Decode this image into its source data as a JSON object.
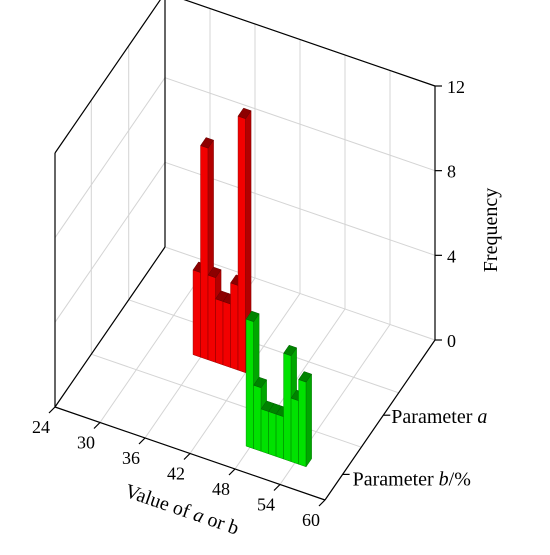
{
  "chart_data": {
    "type": "bar",
    "title": "",
    "xlabel": "Value of a or b",
    "xlabel_parts": [
      "Value of ",
      "a",
      " or ",
      "b"
    ],
    "zlabel": "Frequency",
    "x_ticks": [
      "24",
      "30",
      "36",
      "42",
      "48",
      "54",
      "60"
    ],
    "xlim": [
      24,
      60
    ],
    "z_ticks": [
      "0",
      "4",
      "8",
      "12"
    ],
    "zlim": [
      0,
      12
    ],
    "grid": true,
    "series": [
      {
        "name": "Parameter a",
        "label_parts": [
          "Parameter ",
          "a",
          ""
        ],
        "color": "#ff0000",
        "x": [
          35.5,
          36.5,
          37.5,
          38.5,
          39.5,
          40.5,
          41.5
        ],
        "values": [
          4,
          10,
          4,
          3,
          3,
          4,
          12
        ]
      },
      {
        "name": "Parameter b/%",
        "label_parts": [
          "Parameter ",
          "b",
          "/%"
        ],
        "color": "#00ee00",
        "x": [
          48,
          49,
          50,
          51,
          52,
          53,
          54,
          55
        ],
        "values": [
          6,
          3,
          2,
          2,
          2,
          5,
          3,
          4
        ]
      }
    ]
  }
}
